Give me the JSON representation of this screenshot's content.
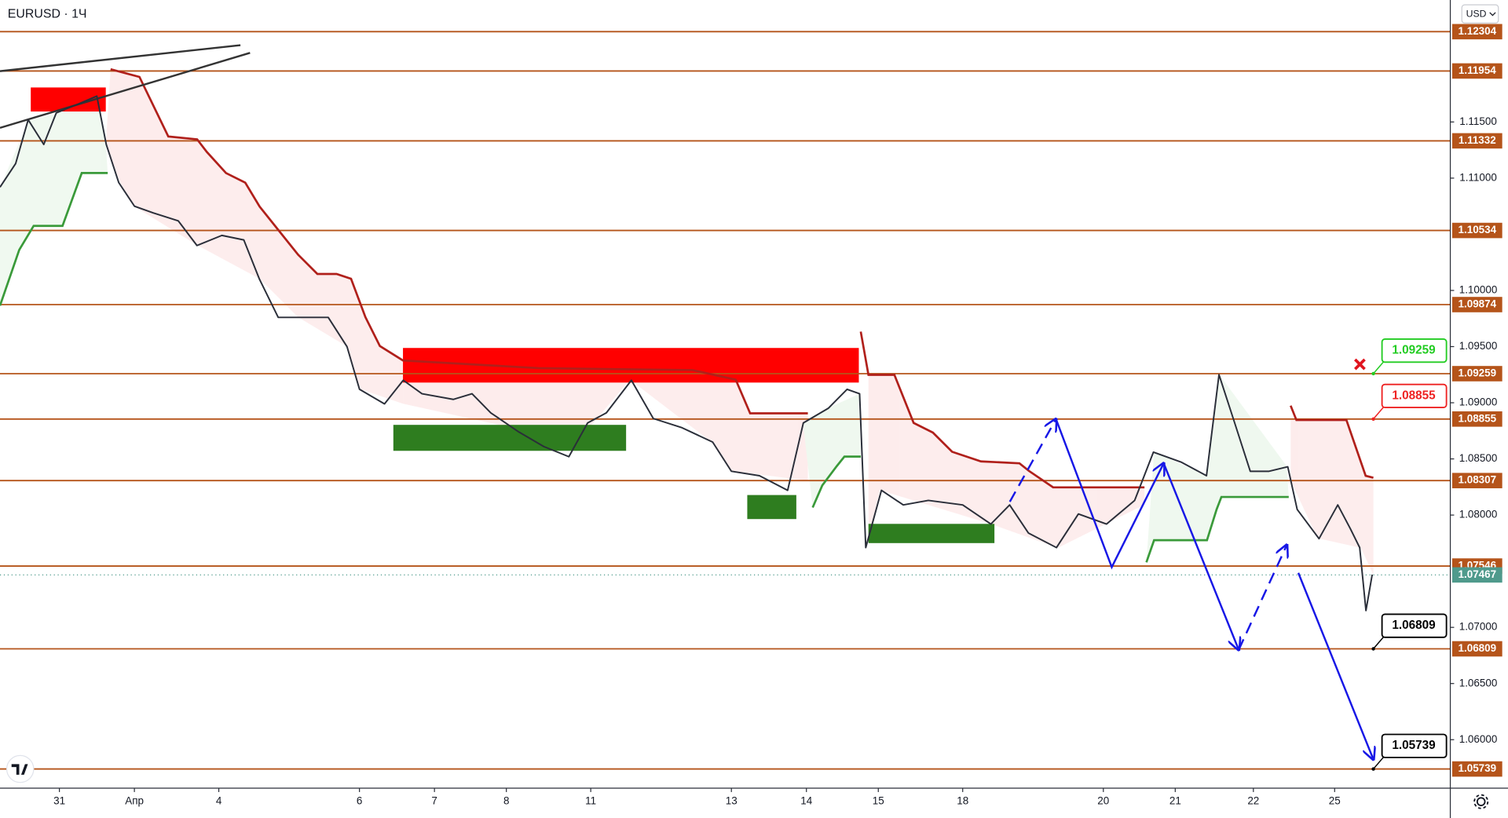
{
  "chart_data": {
    "type": "line",
    "title": "EURUSD · 1Ч",
    "currency": "USD",
    "color": "#2a2e39",
    "x": [
      0,
      5,
      9,
      14,
      18,
      25,
      31,
      34,
      38,
      43,
      49,
      57,
      63,
      71,
      78,
      83,
      89,
      95,
      105,
      111,
      115,
      123,
      129,
      135,
      145,
      151,
      157,
      166,
      174,
      182,
      188,
      194,
      202,
      209,
      218,
      228,
      234,
      243,
      252,
      257,
      265,
      271,
      275,
      277,
      282,
      289,
      297,
      308,
      317,
      323,
      329,
      338,
      345,
      354,
      363,
      369,
      378,
      386,
      390,
      395,
      400,
      406,
      412,
      415,
      422,
      428,
      432,
      435,
      437,
      439
    ],
    "values": [
      1.1092,
      1.1113,
      1.1152,
      1.113,
      1.1158,
      1.1166,
      1.1173,
      1.113,
      1.1096,
      1.1075,
      1.1069,
      1.1062,
      1.104,
      1.1049,
      1.1045,
      1.101,
      1.0976,
      1.0976,
      1.0976,
      1.095,
      1.0912,
      1.0899,
      1.092,
      1.0908,
      1.0903,
      1.0908,
      1.0891,
      1.0874,
      1.0861,
      1.0852,
      1.0882,
      1.0891,
      1.092,
      1.0886,
      1.0878,
      1.0865,
      1.0839,
      1.0835,
      1.0822,
      1.0882,
      1.0895,
      1.0912,
      1.0908,
      1.0771,
      1.0822,
      1.0809,
      1.0813,
      1.0809,
      1.0792,
      1.0809,
      1.0784,
      1.0771,
      1.0801,
      1.0792,
      1.0813,
      1.0856,
      1.0847,
      1.0835,
      1.0925,
      1.0882,
      1.0839,
      1.0839,
      1.0843,
      1.0805,
      1.0779,
      1.0809,
      1.0788,
      1.0771,
      1.0715,
      1.0747
    ],
    "xlim": [
      0,
      464
    ],
    "ylim": [
      1.05568,
      1.12586
    ],
    "xticks": [
      {
        "value": 19,
        "label": "31"
      },
      {
        "value": 43,
        "label": "Апр"
      },
      {
        "value": 70,
        "label": "4"
      },
      {
        "value": 115,
        "label": "6"
      },
      {
        "value": 139,
        "label": "7"
      },
      {
        "value": 162,
        "label": "8"
      },
      {
        "value": 189,
        "label": "11"
      },
      {
        "value": 234,
        "label": "13"
      },
      {
        "value": 258,
        "label": "14"
      },
      {
        "value": 281,
        "label": "15"
      },
      {
        "value": 308,
        "label": "18"
      },
      {
        "value": 353,
        "label": "20"
      },
      {
        "value": 376,
        "label": "21"
      },
      {
        "value": 401,
        "label": "22"
      },
      {
        "value": 427,
        "label": "25"
      }
    ],
    "yticks": [
      {
        "value": 1.06,
        "label": "1.06000"
      },
      {
        "value": 1.065,
        "label": "1.06500"
      },
      {
        "value": 1.07,
        "label": "1.07000"
      },
      {
        "value": 1.08,
        "label": "1.08000"
      },
      {
        "value": 1.085,
        "label": "1.08500"
      },
      {
        "value": 1.09,
        "label": "1.09000"
      },
      {
        "value": 1.095,
        "label": "1.09500"
      },
      {
        "value": 1.1,
        "label": "1.10000"
      },
      {
        "value": 1.11,
        "label": "1.11000"
      },
      {
        "value": 1.115,
        "label": "1.11500"
      }
    ],
    "levels": [
      1.12304,
      1.11954,
      1.11332,
      1.10534,
      1.09874,
      1.09259,
      1.08855,
      1.08307,
      1.07546,
      1.06809,
      1.05739
    ],
    "level_color": "#b5541a",
    "current_price": 1.07467,
    "current_color": "#4f9a8c",
    "callouts": [
      {
        "value": 1.09259,
        "color": "#22cc22"
      },
      {
        "value": 1.08855,
        "color": "#ee2222"
      },
      {
        "value": 1.06809,
        "color": "#000000"
      },
      {
        "value": 1.05739,
        "color": "#000000"
      }
    ]
  }
}
